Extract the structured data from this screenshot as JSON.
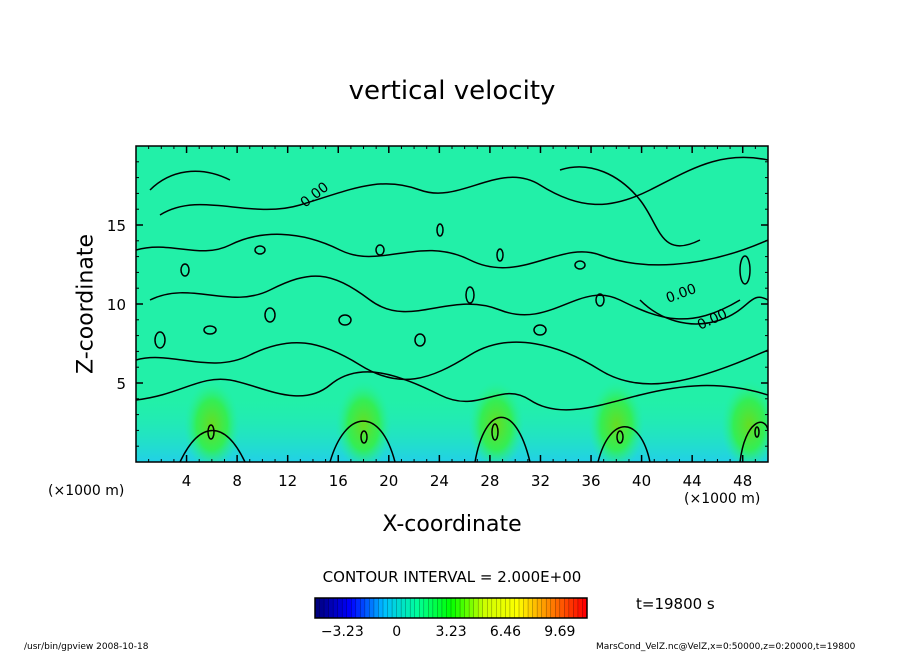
{
  "chart_data": {
    "type": "heatmap",
    "title": "vertical velocity",
    "xlabel": "X-coordinate",
    "ylabel": "Z-coordinate",
    "x_unit_left": "(×1000 m)",
    "x_unit_right": "(×1000 m)",
    "xlim": [
      0,
      50
    ],
    "ylim": [
      0,
      20
    ],
    "xticks": [
      "4",
      "8",
      "12",
      "16",
      "20",
      "24",
      "28",
      "32",
      "36",
      "40",
      "44",
      "48"
    ],
    "yticks": [
      "5",
      "10",
      "15"
    ],
    "contour_labels": [
      "0.00",
      "0.00",
      "0.00"
    ],
    "contour_interval": "CONTOUR INTERVAL = 2.000E+00",
    "colorbar": {
      "min": -4.85,
      "max": 11.3,
      "tick_labels": [
        "-3.23",
        "0",
        "3.23",
        "6.46",
        "9.69"
      ],
      "colors": [
        "#000080",
        "#0000ff",
        "#00bfff",
        "#00ff99",
        "#00ff00",
        "#ccff00",
        "#ffff00",
        "#ff8000",
        "#ff0000"
      ]
    },
    "updraft_x_positions": [
      6,
      18,
      28.5,
      38,
      48.5
    ],
    "time_label": "t=19800 s"
  },
  "footer": {
    "left": "/usr/bin/gpview   2008-10-18",
    "right": "MarsCond_VelZ.nc@VelZ,x=0:50000,z=0:20000,t=19800"
  }
}
